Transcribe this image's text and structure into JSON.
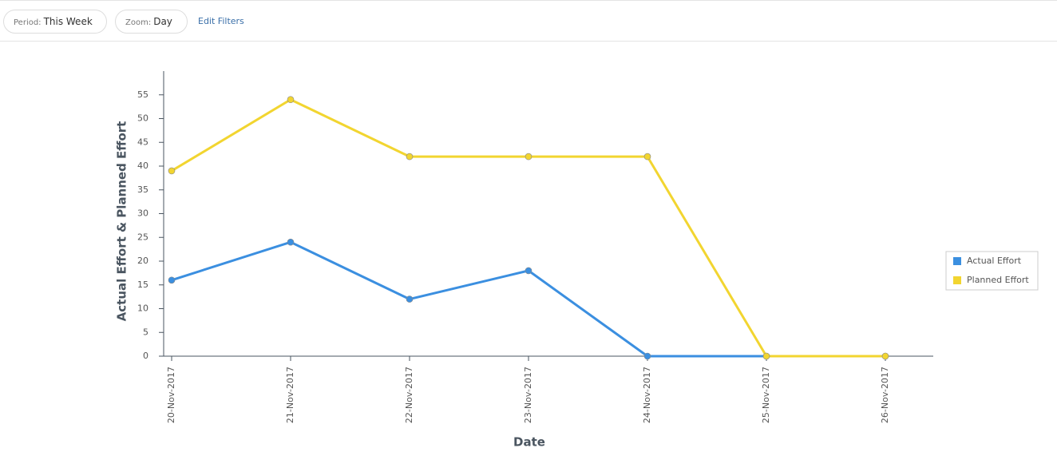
{
  "toolbar": {
    "period_label": "Period:",
    "period_value": "This Week",
    "zoom_label": "Zoom:",
    "zoom_value": "Day",
    "edit_filters": "Edit Filters"
  },
  "chart_data": {
    "type": "line",
    "x_label": "Date",
    "y_label": "Actual Effort & Planned Effort",
    "categories": [
      "20-Nov-2017",
      "21-Nov-2017",
      "22-Nov-2017",
      "23-Nov-2017",
      "24-Nov-2017",
      "25-Nov-2017",
      "26-Nov-2017"
    ],
    "series": [
      {
        "name": "Actual Effort",
        "color": "#3b8fe0",
        "values": [
          16,
          24,
          12,
          18,
          0,
          0,
          0
        ]
      },
      {
        "name": "Planned Effort",
        "color": "#f2d530",
        "values": [
          39,
          54,
          42,
          42,
          42,
          0,
          0
        ]
      }
    ],
    "ylim": [
      0,
      60
    ],
    "yticks": [
      0,
      5,
      10,
      15,
      20,
      25,
      30,
      35,
      40,
      45,
      50,
      55
    ],
    "legend": "right"
  }
}
